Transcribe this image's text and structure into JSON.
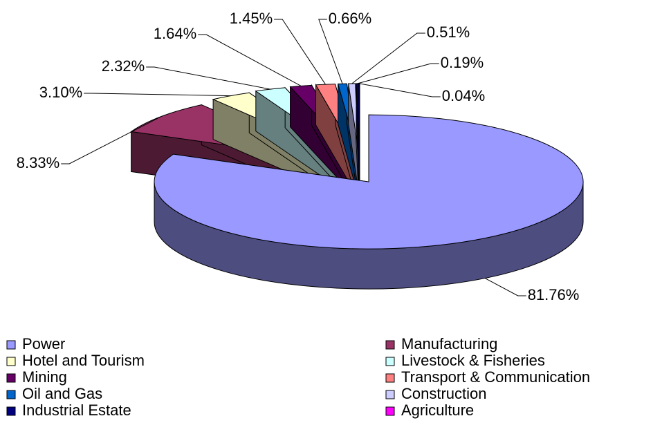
{
  "chart_data": {
    "type": "pie",
    "categories": [
      "Power",
      "Manufacturing",
      "Hotel and Tourism",
      "Livestock & Fisheries",
      "Mining",
      "Transport & Communication",
      "Oil and Gas",
      "Construction",
      "Industrial Estate",
      "Agriculture"
    ],
    "values": [
      81.76,
      8.33,
      3.1,
      2.32,
      1.64,
      1.45,
      0.66,
      0.51,
      0.19,
      0.04
    ],
    "value_labels": [
      "81.76%",
      "8.33%",
      "3.10%",
      "2.32%",
      "1.64%",
      "1.45%",
      "0.66%",
      "0.51%",
      "0.19%",
      "0.04%"
    ],
    "colors": [
      "#9999ff",
      "#993366",
      "#ffffcc",
      "#ccffff",
      "#660066",
      "#ff8080",
      "#0066cc",
      "#ccccff",
      "#000080",
      "#ff00ff"
    ],
    "legend": "bottom"
  }
}
